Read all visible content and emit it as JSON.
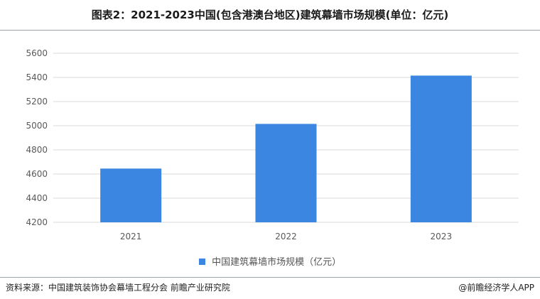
{
  "title": "图表2：2021-2023中国(包含港澳台地区)建筑幕墙市场规模(单位：亿元)",
  "source": "资料来源：中国建筑装饰协会幕墙工程分会 前瞻产业研究院",
  "credit": "@前瞻经济学人APP",
  "colors": {
    "bar": "#3b86e0",
    "grid": "#d9d9d9",
    "axis_text": "#595959"
  },
  "chart_data": {
    "type": "bar",
    "categories": [
      "2021",
      "2022",
      "2023"
    ],
    "series": [
      {
        "name": "中国建筑幕墙市场规模（亿元）",
        "values": [
          4645,
          5015,
          5415
        ]
      }
    ],
    "ylim": [
      4200,
      5600
    ],
    "yticks": [
      4200,
      4400,
      4600,
      4800,
      5000,
      5200,
      5400,
      5600
    ],
    "grid": true,
    "legend": "bottom"
  }
}
